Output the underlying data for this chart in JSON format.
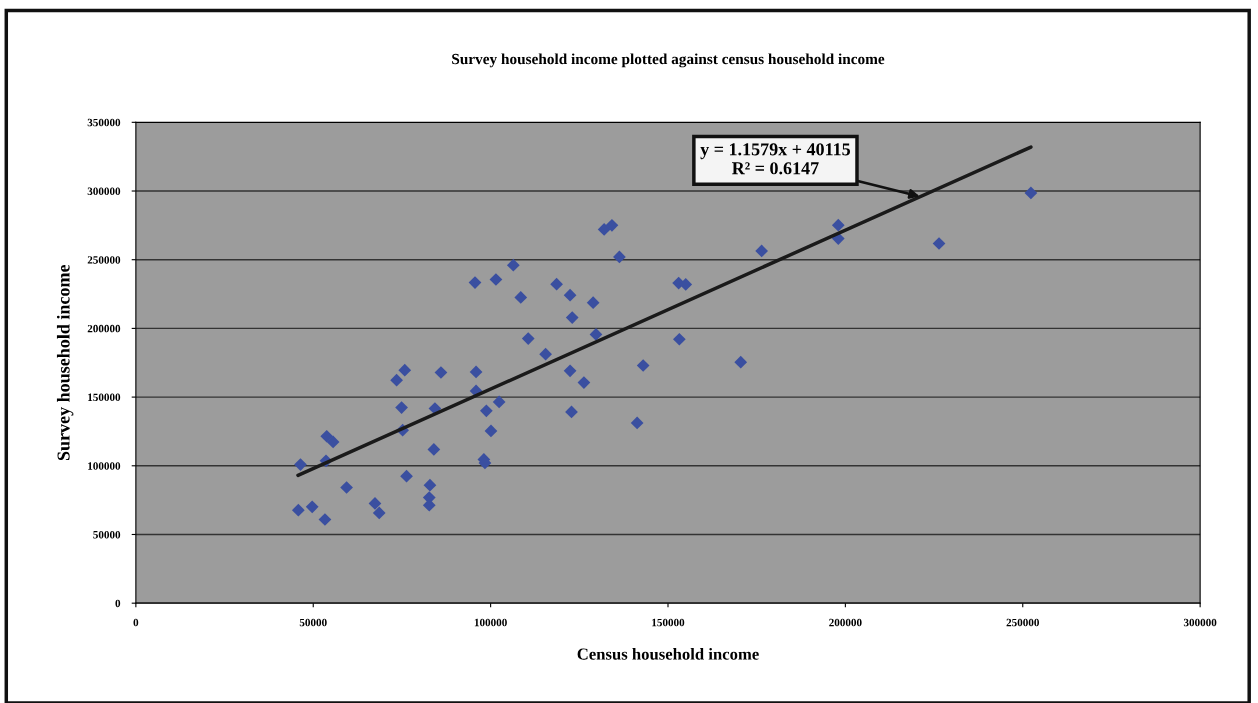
{
  "chart_data": {
    "type": "scatter",
    "title": "Survey household income plotted against census household income",
    "xlabel": "Census household income",
    "ylabel": "Survey household income",
    "xlim": [
      0,
      300000
    ],
    "xticks": [
      0,
      50000,
      100000,
      150000,
      200000,
      250000,
      300000
    ],
    "ylim": [
      0,
      350000
    ],
    "yticks": [
      0,
      50000,
      100000,
      150000,
      200000,
      250000,
      300000,
      350000
    ],
    "grid": "y",
    "marker": "diamond",
    "legend": false,
    "series": [
      {
        "color": "#3a4fa0",
        "x": [
          95600,
          101500,
          106400,
          108500,
          118600,
          122400,
          123000,
          110600,
          115500,
          122400,
          75800,
          73500,
          86000,
          95900,
          95900,
          102400,
          98800,
          100100,
          98100,
          98400,
          122800,
          74900,
          84300,
          75200,
          53800,
          55600,
          84000,
          46400,
          53600,
          76300,
          82900,
          82700,
          82700,
          59400,
          67400,
          68600,
          45800,
          49700,
          53300,
          132000,
          134200,
          136300,
          153000,
          155000,
          128900,
          129700,
          153200,
          143000,
          126300,
          170500,
          141300,
          198000,
          198000,
          176400,
          226400,
          252300
        ],
        "values": [
          233400,
          235600,
          246000,
          222500,
          232200,
          224200,
          207900,
          192600,
          181200,
          169100,
          169600,
          162300,
          167900,
          168300,
          154500,
          146500,
          140000,
          125400,
          104600,
          102100,
          139200,
          142400,
          141700,
          125900,
          121500,
          117400,
          111900,
          100900,
          103600,
          92400,
          85900,
          76900,
          71300,
          84200,
          72600,
          65700,
          67700,
          70100,
          60900,
          272000,
          275000,
          252000,
          233000,
          232000,
          218700,
          195600,
          192100,
          173000,
          160600,
          175400,
          131200,
          275100,
          265400,
          256400,
          261800,
          298600
        ]
      },
      {
        "type": "line",
        "marker": "none",
        "color": "#1a1a1a",
        "x": [
          45700,
          252300
        ],
        "values": [
          93000,
          332000
        ]
      }
    ],
    "annotations": [
      {
        "text": "y = 1.1579x + 40115\nR² = 0.6147",
        "x": 221000,
        "y": 296000
      }
    ]
  }
}
